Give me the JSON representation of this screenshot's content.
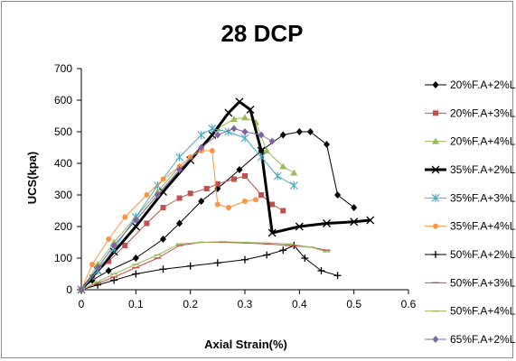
{
  "chart_data": {
    "type": "line",
    "title": "28 DCP",
    "xlabel": "Axial Strain(%)",
    "ylabel": "UCS(kpa)",
    "xlim": [
      0,
      0.6
    ],
    "ylim": [
      0,
      700
    ],
    "xticks": [
      0,
      0.1,
      0.2,
      0.3,
      0.4,
      0.5,
      0.6
    ],
    "yticks": [
      0,
      100,
      200,
      300,
      400,
      500,
      600,
      700
    ],
    "xtick_labels": [
      "0",
      "0.1",
      "0.2",
      "0.3",
      "0.4",
      "0.5",
      "0.6"
    ],
    "ytick_labels": [
      "0",
      "100",
      "200",
      "300",
      "400",
      "500",
      "600",
      "700"
    ],
    "grid": false,
    "legend_position": "right",
    "series": [
      {
        "name": "20%F.A+2%L",
        "color": "#000000",
        "marker": "diamond",
        "x": [
          0,
          0.02,
          0.05,
          0.1,
          0.15,
          0.18,
          0.22,
          0.25,
          0.29,
          0.33,
          0.37,
          0.4,
          0.42,
          0.45,
          0.47,
          0.5
        ],
        "y": [
          0,
          30,
          60,
          100,
          160,
          210,
          280,
          320,
          380,
          440,
          490,
          500,
          500,
          460,
          300,
          260
        ]
      },
      {
        "name": "20%F.A+3%L",
        "color": "#c0504d",
        "marker": "square",
        "x": [
          0,
          0.02,
          0.05,
          0.08,
          0.12,
          0.15,
          0.18,
          0.2,
          0.23,
          0.25,
          0.28,
          0.3,
          0.33,
          0.35,
          0.37
        ],
        "y": [
          0,
          40,
          90,
          140,
          210,
          260,
          290,
          305,
          320,
          335,
          350,
          360,
          300,
          270,
          250
        ]
      },
      {
        "name": "20%F.A+4%L",
        "color": "#9bbb59",
        "marker": "triangle",
        "x": [
          0,
          0.03,
          0.06,
          0.1,
          0.14,
          0.18,
          0.22,
          0.25,
          0.28,
          0.3,
          0.32,
          0.34,
          0.37,
          0.39
        ],
        "y": [
          0,
          80,
          150,
          230,
          310,
          390,
          450,
          510,
          540,
          545,
          530,
          440,
          390,
          370
        ]
      },
      {
        "name": "35%F.A+2%L",
        "color": "#000000",
        "marker": "x",
        "line_width": 3,
        "x": [
          0,
          0.03,
          0.06,
          0.1,
          0.15,
          0.2,
          0.24,
          0.27,
          0.29,
          0.31,
          0.33,
          0.35,
          0.4,
          0.45,
          0.5,
          0.53
        ],
        "y": [
          0,
          60,
          120,
          200,
          310,
          410,
          490,
          560,
          595,
          570,
          440,
          180,
          200,
          210,
          215,
          220
        ]
      },
      {
        "name": "35%F.A+3%L",
        "color": "#4bacc6",
        "marker": "star",
        "x": [
          0,
          0.03,
          0.06,
          0.1,
          0.14,
          0.18,
          0.22,
          0.24,
          0.27,
          0.3,
          0.33,
          0.36,
          0.39
        ],
        "y": [
          0,
          60,
          130,
          230,
          330,
          420,
          490,
          510,
          500,
          480,
          420,
          360,
          330
        ]
      },
      {
        "name": "35%F.A+4%L",
        "color": "#f79646",
        "marker": "circle",
        "x": [
          0,
          0.02,
          0.05,
          0.08,
          0.12,
          0.15,
          0.18,
          0.2,
          0.22,
          0.24,
          0.25,
          0.27,
          0.3,
          0.32
        ],
        "y": [
          0,
          80,
          160,
          230,
          300,
          350,
          390,
          420,
          440,
          440,
          270,
          260,
          280,
          285
        ]
      },
      {
        "name": "50%F.A+2%L",
        "color": "#000000",
        "marker": "plus",
        "x": [
          0,
          0.03,
          0.06,
          0.1,
          0.15,
          0.2,
          0.25,
          0.3,
          0.34,
          0.37,
          0.39,
          0.41,
          0.44,
          0.47
        ],
        "y": [
          0,
          15,
          30,
          50,
          65,
          75,
          85,
          95,
          110,
          125,
          140,
          100,
          60,
          45
        ]
      },
      {
        "name": "50%F.A+3%L",
        "color": "#c0504d",
        "marker": "dash",
        "x": [
          0,
          0.03,
          0.06,
          0.1,
          0.14,
          0.18,
          0.22,
          0.26,
          0.3,
          0.34,
          0.38,
          0.42,
          0.45
        ],
        "y": [
          0,
          20,
          40,
          70,
          100,
          140,
          150,
          150,
          148,
          145,
          140,
          135,
          125
        ]
      },
      {
        "name": "50%F.A+4%L",
        "color": "#9bbb59",
        "marker": "dash",
        "x": [
          0,
          0.03,
          0.06,
          0.1,
          0.14,
          0.18,
          0.22,
          0.26,
          0.3,
          0.34,
          0.38,
          0.42,
          0.45
        ],
        "y": [
          0,
          25,
          50,
          80,
          110,
          145,
          150,
          152,
          150,
          148,
          145,
          135,
          120
        ]
      },
      {
        "name": "65%F.A+2%L",
        "color": "#8064a2",
        "marker": "diamond",
        "x": [
          0,
          0.03,
          0.06,
          0.1,
          0.14,
          0.18,
          0.22,
          0.25,
          0.28,
          0.3,
          0.33,
          0.35
        ],
        "y": [
          0,
          70,
          140,
          220,
          300,
          380,
          450,
          490,
          510,
          500,
          490,
          470
        ]
      }
    ]
  }
}
